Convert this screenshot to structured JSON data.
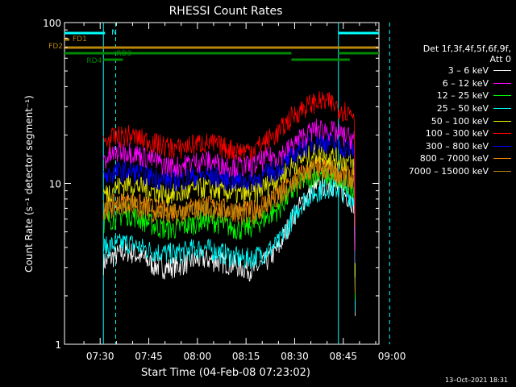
{
  "chart_data": {
    "type": "line",
    "title": "RHESSI Count Rates",
    "xlabel": "Start Time (04-Feb-08 07:23:02)",
    "ylabel": "Count Rate (s⁻¹ detector segment⁻¹)",
    "yscale": "log",
    "ylim": [
      1,
      100
    ],
    "xlim_minutes": [
      -4,
      93
    ],
    "xticks": [
      "07:30",
      "07:45",
      "08:00",
      "08:15",
      "08:30",
      "08:45",
      "09:00"
    ],
    "xtick_minutes": [
      7,
      22,
      37,
      52,
      67,
      82,
      97
    ],
    "yticks": [
      "1",
      "10",
      "100"
    ],
    "legend_header": [
      "Det 1f,3f,4f,5f,6f,9f,",
      "Att 0"
    ],
    "data_start_min": 8.0,
    "data_end_min": 85.5,
    "series": [
      {
        "name": "3 – 6 keV",
        "color": "#ffffff",
        "values": [
          3.2,
          3.6,
          3.8,
          3.5,
          3.1,
          3.0,
          3.1,
          3.3,
          3.4,
          3.3,
          3.2,
          3.0,
          2.9,
          3.3,
          4.0,
          6.0,
          8.0,
          9.5,
          10.0,
          9.0,
          7.5
        ]
      },
      {
        "name": "6 – 12 keV",
        "color": "#ff00ff",
        "values": [
          14.0,
          15.5,
          16.0,
          15.0,
          14.0,
          13.0,
          12.8,
          13.5,
          14.0,
          13.5,
          13.0,
          12.8,
          13.0,
          14.5,
          15.0,
          17.0,
          20.0,
          22.0,
          21.5,
          20.0,
          19.0
        ]
      },
      {
        "name": "12 – 25 keV",
        "color": "#00ff00",
        "values": [
          5.8,
          6.2,
          6.5,
          6.0,
          5.5,
          5.2,
          5.3,
          5.6,
          6.0,
          5.8,
          5.4,
          5.2,
          5.5,
          6.2,
          7.0,
          8.8,
          10.5,
          11.5,
          11.2,
          10.0,
          9.5
        ]
      },
      {
        "name": "25 – 50 keV",
        "color": "#00ffff",
        "values": [
          4.0,
          4.2,
          4.3,
          4.0,
          3.8,
          3.7,
          3.7,
          3.9,
          4.0,
          3.8,
          3.6,
          3.4,
          3.5,
          3.8,
          4.3,
          6.0,
          8.0,
          9.0,
          9.5,
          9.0,
          8.0
        ]
      },
      {
        "name": "50 – 100 keV",
        "color": "#e8e800",
        "values": [
          8.5,
          9.5,
          10.0,
          9.5,
          9.0,
          8.6,
          8.6,
          9.0,
          9.5,
          9.0,
          8.8,
          8.5,
          8.7,
          9.8,
          11.0,
          12.8,
          14.5,
          15.5,
          15.0,
          14.0,
          13.0
        ]
      },
      {
        "name": "100 – 300 keV",
        "color": "#ff0000",
        "values": [
          18.0,
          19.5,
          20.0,
          19.0,
          18.0,
          17.0,
          16.5,
          17.5,
          18.0,
          17.5,
          16.5,
          16.0,
          16.5,
          18.5,
          21.0,
          26.0,
          30.0,
          32.5,
          32.0,
          29.0,
          27.0
        ]
      },
      {
        "name": "300 – 800 keV",
        "color": "#0000ff",
        "values": [
          11.0,
          11.8,
          12.0,
          11.5,
          11.0,
          10.5,
          10.5,
          11.0,
          11.3,
          11.0,
          10.6,
          10.3,
          10.5,
          11.5,
          12.5,
          14.5,
          17.0,
          18.5,
          18.0,
          17.0,
          16.0
        ]
      },
      {
        "name": "800 – 7000 keV",
        "color": "#ff8800",
        "values": [
          7.0,
          7.5,
          7.8,
          7.4,
          7.0,
          6.8,
          6.8,
          7.1,
          7.4,
          7.1,
          6.9,
          6.7,
          6.9,
          7.7,
          8.7,
          10.2,
          11.8,
          12.8,
          12.4,
          11.5,
          10.8
        ]
      },
      {
        "name": "7000 – 15000 keV",
        "color": "#b8860b",
        "values": [
          6.8,
          7.2,
          7.5,
          7.1,
          6.7,
          6.5,
          6.5,
          6.8,
          7.1,
          6.8,
          6.6,
          6.4,
          6.6,
          7.4,
          8.4,
          9.8,
          11.3,
          12.3,
          11.9,
          11.0,
          10.3
        ]
      }
    ],
    "markers": [
      {
        "label": "N",
        "color": "#00ffff",
        "segments": [
          [
            -4,
            8.5
          ],
          [
            80.5,
            93
          ]
        ]
      },
      {
        "label": "FD1",
        "color": "#b8860b",
        "segments": [
          [
            -4,
            -2.5
          ]
        ]
      },
      {
        "label": "FD2",
        "color": "#b8860b",
        "segments": [
          [
            -4,
            93
          ]
        ]
      },
      {
        "label": "RD3",
        "color": "#008800",
        "segments": [
          [
            -4,
            66
          ],
          [
            80.5,
            93
          ]
        ]
      },
      {
        "label": "RD4",
        "color": "#008800",
        "segments": [
          [
            8,
            14
          ],
          [
            66,
            84
          ]
        ]
      }
    ],
    "vlines": [
      {
        "minute": 8.0,
        "color": "#00ffff",
        "style": "solid"
      },
      {
        "minute": 11.8,
        "color": "#00ffff",
        "style": "dashed"
      },
      {
        "minute": 80.5,
        "color": "#00ffff",
        "style": "solid"
      },
      {
        "minute": 96.3,
        "color": "#00ffff",
        "style": "dashed"
      }
    ]
  },
  "timestamp": "13–Oct–2021 18:31"
}
